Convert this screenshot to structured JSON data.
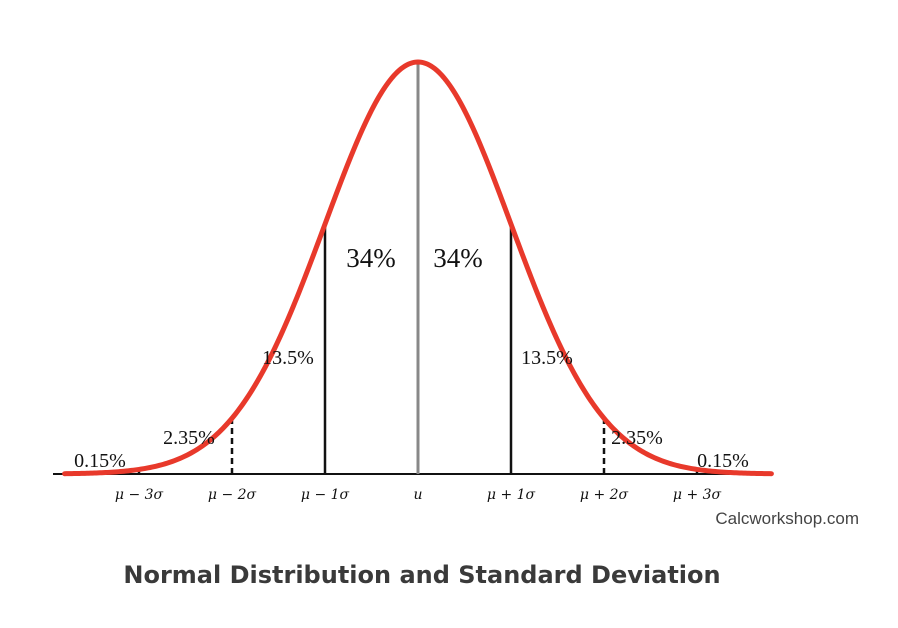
{
  "chart_data": {
    "type": "area",
    "title": "Normal Distribution and Standard Deviation",
    "credit": "Calcworkshop.com",
    "distribution": "normal",
    "mean": 0,
    "sd": 1,
    "xlim": [
      -3.8,
      3.8
    ],
    "curve_color": "#e8392b",
    "tick_labels": [
      {
        "x": -3,
        "label": "μ − 3σ"
      },
      {
        "x": -2,
        "label": "μ − 2σ"
      },
      {
        "x": -1,
        "label": "μ − 1σ"
      },
      {
        "x": 0,
        "label": "u"
      },
      {
        "x": 1,
        "label": "μ + 1σ"
      },
      {
        "x": 2,
        "label": "μ + 2σ"
      },
      {
        "x": 3,
        "label": "μ + 3σ"
      }
    ],
    "boundaries": [
      {
        "x": -3,
        "style": "dashed"
      },
      {
        "x": -2,
        "style": "dashed"
      },
      {
        "x": -1,
        "style": "solid"
      },
      {
        "x": 0,
        "style": "center"
      },
      {
        "x": 1,
        "style": "solid"
      },
      {
        "x": 2,
        "style": "dashed"
      },
      {
        "x": 3,
        "style": "dashed"
      }
    ],
    "regions": [
      {
        "label": "0.15%",
        "from": null,
        "to": -3,
        "value": 0.15
      },
      {
        "label": "2.35%",
        "from": -3,
        "to": -2,
        "value": 2.35
      },
      {
        "label": "13.5%",
        "from": -2,
        "to": -1,
        "value": 13.5
      },
      {
        "label": "34%",
        "from": -1,
        "to": 0,
        "value": 34
      },
      {
        "label": "34%",
        "from": 0,
        "to": 1,
        "value": 34
      },
      {
        "label": "13.5%",
        "from": 1,
        "to": 2,
        "value": 13.5
      },
      {
        "label": "2.35%",
        "from": 2,
        "to": 3,
        "value": 2.35
      },
      {
        "label": "0.15%",
        "from": 3,
        "to": null,
        "value": 0.15
      }
    ]
  }
}
